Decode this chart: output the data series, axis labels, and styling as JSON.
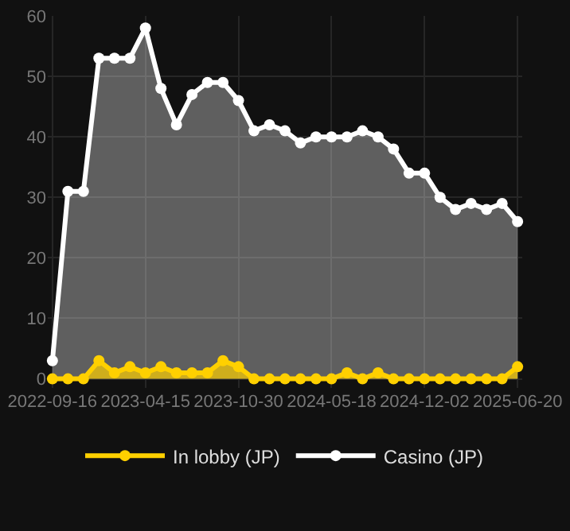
{
  "chart_data": {
    "type": "area",
    "categories": [
      "2022-09-16",
      null,
      null,
      null,
      null,
      null,
      "2023-04-15",
      null,
      null,
      null,
      null,
      null,
      "2023-10-30",
      null,
      null,
      null,
      null,
      null,
      "2024-05-18",
      null,
      null,
      null,
      null,
      null,
      "2024-12-02",
      null,
      null,
      null,
      null,
      null,
      "2025-06-20"
    ],
    "series": [
      {
        "name": "In lobby (JP)",
        "color": "#ffd000",
        "values": [
          0,
          0,
          0,
          3,
          1,
          2,
          1,
          2,
          1,
          1,
          1,
          3,
          2,
          0,
          0,
          0,
          0,
          0,
          0,
          1,
          0,
          1,
          0,
          0,
          0,
          0,
          0,
          0,
          0,
          0,
          2
        ]
      },
      {
        "name": "Casino (JP)",
        "color": "#ffffff",
        "values": [
          3,
          31,
          31,
          53,
          53,
          53,
          58,
          48,
          42,
          47,
          49,
          49,
          46,
          41,
          42,
          41,
          39,
          40,
          40,
          40,
          41,
          40,
          38,
          34,
          34,
          30,
          28,
          29,
          28,
          29,
          26
        ]
      }
    ],
    "ylim": [
      -1.5,
      60
    ],
    "yticks": [
      0,
      10,
      20,
      30,
      40,
      50,
      60
    ],
    "grid": true,
    "legend": "bottom",
    "marker": "circle",
    "line_style": "solid"
  }
}
